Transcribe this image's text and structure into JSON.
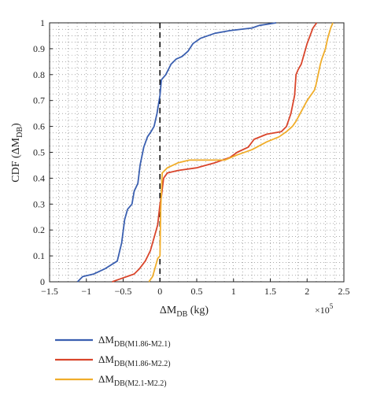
{
  "chart_data": {
    "type": "line",
    "xlabel": {
      "main": "ΔM",
      "sub": "DB",
      "unit": " (kg)"
    },
    "ylabel": {
      "prefix": "CDF (ΔM",
      "sub": "DB",
      "suffix": ")"
    },
    "x_multiplier": "×10",
    "x_multiplier_exp": "5",
    "xlim": [
      -1.5,
      2.5
    ],
    "ylim": [
      0,
      1
    ],
    "x_ticks": [
      "−1.5",
      "−1",
      "−0.5",
      "0",
      "0.5",
      "1",
      "1.5",
      "2",
      "2.5"
    ],
    "y_ticks": [
      "0",
      "0.1",
      "0.2",
      "0.3",
      "0.4",
      "0.5",
      "0.6",
      "0.7",
      "0.8",
      "0.9",
      "1"
    ],
    "x_tick_values": [
      -1.5,
      -1,
      -0.5,
      0,
      0.5,
      1,
      1.5,
      2,
      2.5
    ],
    "y_tick_values": [
      0,
      0.1,
      0.2,
      0.3,
      0.4,
      0.5,
      0.6,
      0.7,
      0.8,
      0.9,
      1
    ],
    "vertical_reference_line": {
      "x": 0,
      "style": "dashed",
      "color": "#000000"
    },
    "grid": "dotted",
    "legend_position": "below",
    "series": [
      {
        "name_main": "ΔM",
        "name_sub": "DB(M1.86-M2.1)",
        "color": "#3a5fb0",
        "x": [
          -1.12,
          -1.05,
          -0.9,
          -0.75,
          -0.58,
          -0.52,
          -0.48,
          -0.44,
          -0.38,
          -0.35,
          -0.3,
          -0.27,
          -0.22,
          -0.17,
          -0.12,
          -0.08,
          -0.04,
          0.0,
          0.02,
          0.08,
          0.15,
          0.22,
          0.3,
          0.38,
          0.45,
          0.55,
          0.75,
          0.95,
          1.25,
          1.35,
          1.58
        ],
        "y": [
          0.0,
          0.02,
          0.03,
          0.05,
          0.08,
          0.15,
          0.24,
          0.28,
          0.3,
          0.35,
          0.38,
          0.45,
          0.52,
          0.56,
          0.58,
          0.6,
          0.65,
          0.72,
          0.78,
          0.8,
          0.84,
          0.86,
          0.87,
          0.89,
          0.92,
          0.94,
          0.96,
          0.97,
          0.98,
          0.99,
          1.0
        ]
      },
      {
        "name_main": "ΔM",
        "name_sub": "DB(M1.86-M2.2)",
        "color": "#d9452b",
        "x": [
          -0.65,
          -0.55,
          -0.35,
          -0.28,
          -0.2,
          -0.13,
          -0.07,
          -0.03,
          0.0,
          0.02,
          0.05,
          0.1,
          0.25,
          0.5,
          0.75,
          0.95,
          1.05,
          1.2,
          1.28,
          1.45,
          1.65,
          1.72,
          1.78,
          1.83,
          1.85,
          1.88,
          1.92,
          1.95,
          2.0,
          2.08,
          2.13
        ],
        "y": [
          0.0,
          0.01,
          0.03,
          0.05,
          0.08,
          0.12,
          0.18,
          0.22,
          0.3,
          0.33,
          0.4,
          0.42,
          0.43,
          0.44,
          0.46,
          0.48,
          0.5,
          0.52,
          0.55,
          0.57,
          0.58,
          0.6,
          0.65,
          0.72,
          0.8,
          0.82,
          0.84,
          0.87,
          0.92,
          0.98,
          1.0
        ]
      },
      {
        "name_main": "ΔM",
        "name_sub": "DB(M2.1-M2.2)",
        "color": "#f0ad2a",
        "x": [
          -0.15,
          -0.1,
          -0.07,
          -0.03,
          0.0,
          0.01,
          0.03,
          0.1,
          0.25,
          0.4,
          0.6,
          0.75,
          0.88,
          1.05,
          1.25,
          1.45,
          1.62,
          1.72,
          1.8,
          1.85,
          2.0,
          2.1,
          2.12,
          2.15,
          2.18,
          2.2,
          2.25,
          2.28,
          2.32,
          2.35
        ],
        "y": [
          0.0,
          0.02,
          0.05,
          0.09,
          0.1,
          0.28,
          0.42,
          0.44,
          0.46,
          0.47,
          0.47,
          0.47,
          0.47,
          0.49,
          0.51,
          0.54,
          0.56,
          0.58,
          0.6,
          0.62,
          0.7,
          0.74,
          0.76,
          0.8,
          0.84,
          0.86,
          0.9,
          0.94,
          0.98,
          1.0
        ]
      }
    ]
  }
}
